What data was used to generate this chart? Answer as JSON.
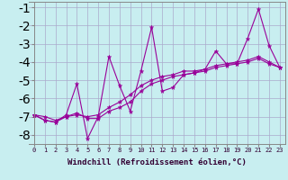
{
  "xlabel": "Windchill (Refroidissement éolien,°C)",
  "bg_color": "#c8eef0",
  "grid_color": "#aaaacc",
  "line_color": "#990099",
  "x": [
    0,
    1,
    2,
    3,
    4,
    5,
    6,
    7,
    8,
    9,
    10,
    11,
    12,
    13,
    14,
    15,
    16,
    17,
    18,
    19,
    20,
    21,
    22,
    23
  ],
  "line_spiky": [
    -6.9,
    -7.2,
    -7.3,
    -6.9,
    -5.2,
    -8.2,
    -7.0,
    -3.7,
    -5.3,
    -6.7,
    -4.5,
    -2.1,
    -5.6,
    -5.4,
    -4.7,
    -4.6,
    -4.4,
    -3.4,
    -4.1,
    -4.1,
    -2.7,
    -1.1,
    -3.1,
    -4.3
  ],
  "line_smooth1": [
    -6.9,
    -7.2,
    -7.3,
    -7.0,
    -6.9,
    -7.0,
    -6.9,
    -6.5,
    -6.2,
    -5.8,
    -5.3,
    -5.0,
    -4.8,
    -4.7,
    -4.5,
    -4.5,
    -4.4,
    -4.2,
    -4.1,
    -4.0,
    -3.9,
    -3.7,
    -4.0,
    -4.3
  ],
  "line_smooth2": [
    -6.9,
    -7.0,
    -7.2,
    -7.0,
    -6.8,
    -7.1,
    -7.1,
    -6.7,
    -6.5,
    -6.2,
    -5.6,
    -5.2,
    -5.0,
    -4.8,
    -4.7,
    -4.6,
    -4.5,
    -4.3,
    -4.2,
    -4.1,
    -4.0,
    -3.8,
    -4.1,
    -4.3
  ],
  "ylim": [
    -8.5,
    -0.7
  ],
  "yticks": [
    -8,
    -7,
    -6,
    -5,
    -4,
    -3,
    -2,
    -1
  ],
  "xticks": [
    0,
    1,
    2,
    3,
    4,
    5,
    6,
    7,
    8,
    9,
    10,
    11,
    12,
    13,
    14,
    15,
    16,
    17,
    18,
    19,
    20,
    21,
    22,
    23
  ]
}
